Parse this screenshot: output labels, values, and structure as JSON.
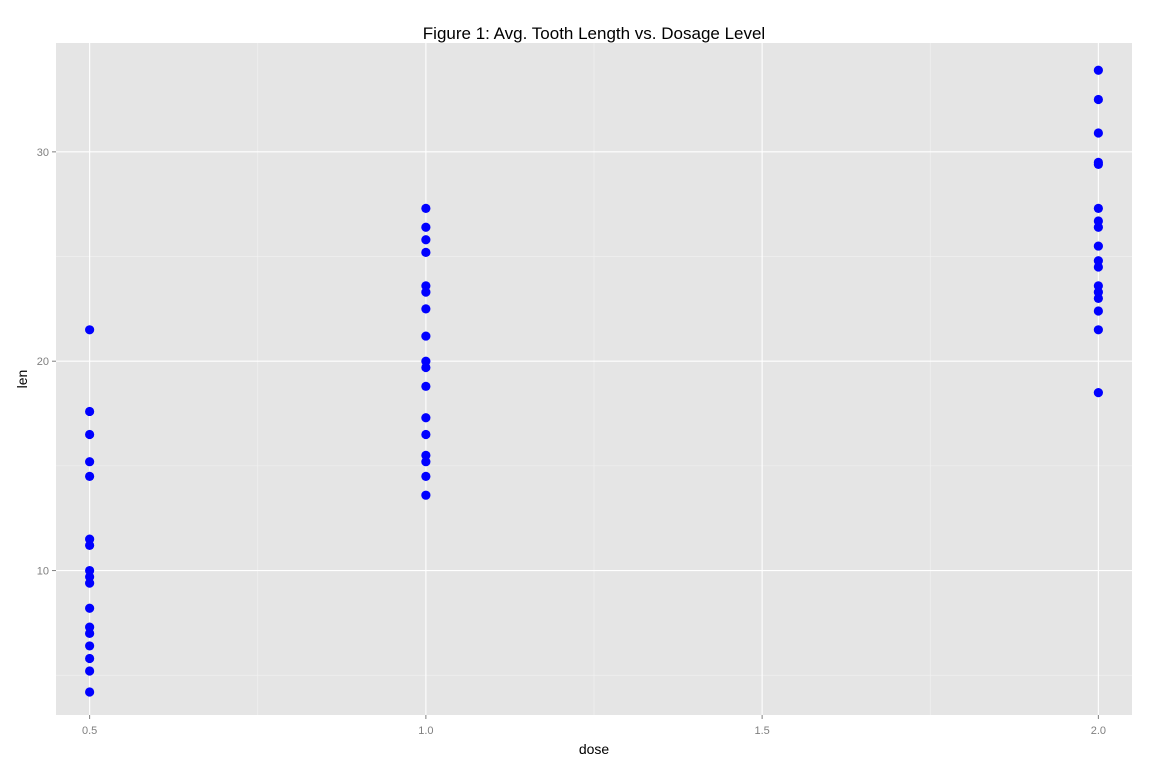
{
  "chart_data": {
    "type": "scatter",
    "title": "Figure 1: Avg. Tooth Length vs. Dosage Level",
    "xlabel": "dose",
    "ylabel": "len",
    "xlim": [
      0.45,
      2.05
    ],
    "ylim": [
      3.1,
      35.2
    ],
    "x_ticks": [
      0.5,
      1.0,
      1.5,
      2.0
    ],
    "x_tick_labels": [
      "0.5",
      "1.0",
      "1.5",
      "2.0"
    ],
    "x_minor_ticks": [
      0.75,
      1.25,
      1.75
    ],
    "y_ticks": [
      10,
      20,
      30
    ],
    "y_tick_labels": [
      "10",
      "20",
      "30"
    ],
    "y_minor_ticks": [
      5,
      15,
      25
    ],
    "grid": true,
    "legend": "none",
    "colors": {
      "panel_background": "#e5e5e5",
      "grid_major": "#ffffff",
      "grid_minor": "#f2f2f2",
      "point": "#0000ff",
      "tick_label": "#7f7f7f",
      "text": "#000000"
    },
    "series": [
      {
        "points": [
          [
            0.5,
            4.2
          ],
          [
            0.5,
            5.2
          ],
          [
            0.5,
            5.8
          ],
          [
            0.5,
            6.4
          ],
          [
            0.5,
            7.0
          ],
          [
            0.5,
            7.3
          ],
          [
            0.5,
            8.2
          ],
          [
            0.5,
            9.4
          ],
          [
            0.5,
            9.7
          ],
          [
            0.5,
            10.0
          ],
          [
            0.5,
            11.2
          ],
          [
            0.5,
            11.5
          ],
          [
            0.5,
            14.5
          ],
          [
            0.5,
            15.2
          ],
          [
            0.5,
            16.5
          ],
          [
            0.5,
            17.6
          ],
          [
            0.5,
            21.5
          ],
          [
            1.0,
            13.6
          ],
          [
            1.0,
            14.5
          ],
          [
            1.0,
            15.2
          ],
          [
            1.0,
            15.5
          ],
          [
            1.0,
            16.5
          ],
          [
            1.0,
            17.3
          ],
          [
            1.0,
            18.8
          ],
          [
            1.0,
            19.7
          ],
          [
            1.0,
            20.0
          ],
          [
            1.0,
            21.2
          ],
          [
            1.0,
            22.5
          ],
          [
            1.0,
            23.3
          ],
          [
            1.0,
            23.6
          ],
          [
            1.0,
            25.2
          ],
          [
            1.0,
            25.8
          ],
          [
            1.0,
            26.4
          ],
          [
            1.0,
            27.3
          ],
          [
            2.0,
            18.5
          ],
          [
            2.0,
            21.5
          ],
          [
            2.0,
            22.4
          ],
          [
            2.0,
            23.0
          ],
          [
            2.0,
            23.3
          ],
          [
            2.0,
            23.6
          ],
          [
            2.0,
            24.5
          ],
          [
            2.0,
            24.8
          ],
          [
            2.0,
            25.5
          ],
          [
            2.0,
            26.4
          ],
          [
            2.0,
            26.7
          ],
          [
            2.0,
            27.3
          ],
          [
            2.0,
            29.4
          ],
          [
            2.0,
            29.5
          ],
          [
            2.0,
            30.9
          ],
          [
            2.0,
            32.5
          ],
          [
            2.0,
            33.9
          ]
        ]
      }
    ]
  }
}
